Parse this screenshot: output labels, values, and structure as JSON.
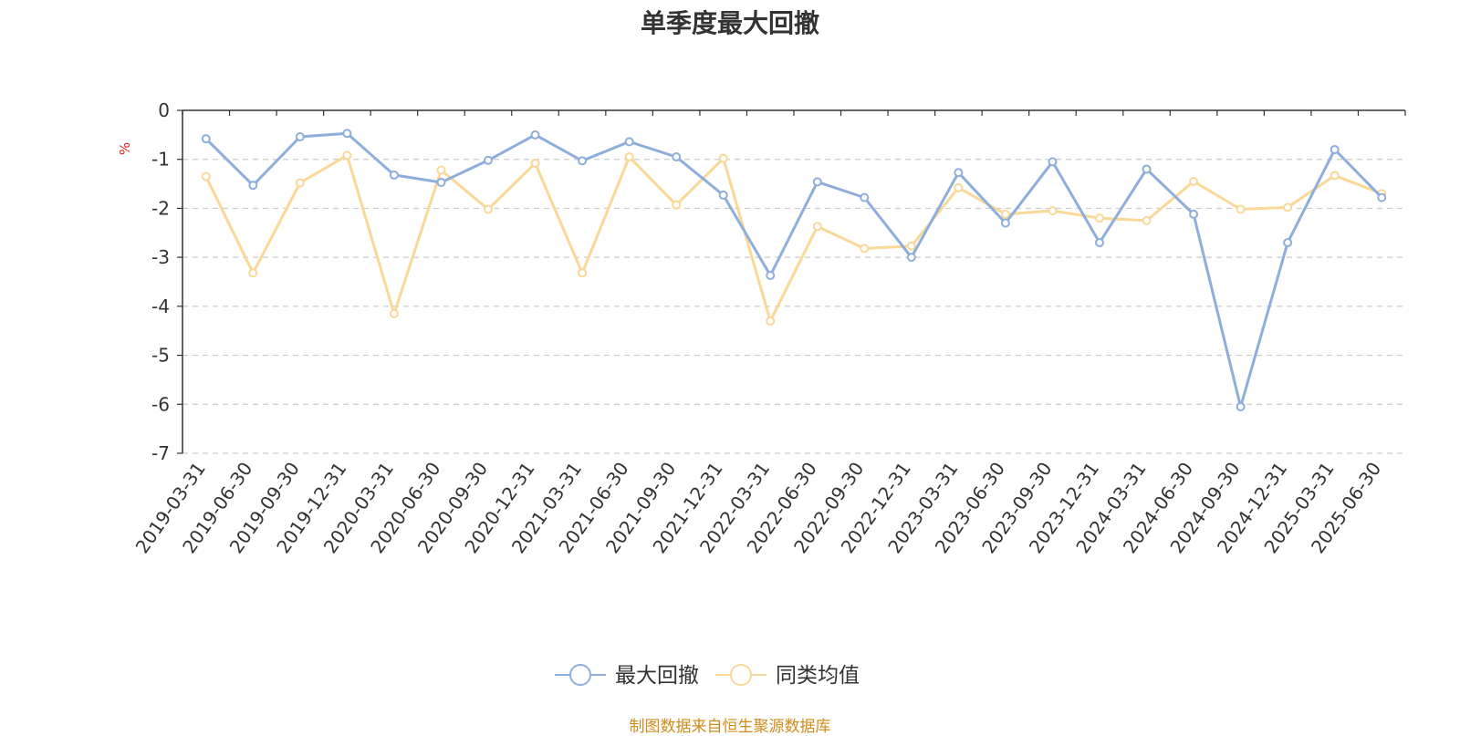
{
  "title": "单季度最大回撤",
  "source_note": "制图数据来自恒生聚源数据库",
  "chart_data": {
    "type": "line",
    "title": "单季度最大回撤",
    "ylabel": "%",
    "ylabel_color": "#e02020",
    "ylim": [
      -7,
      0
    ],
    "yticks": [
      0,
      -1,
      -2,
      -3,
      -4,
      -5,
      -6,
      -7
    ],
    "grid": "horizontal dashed",
    "legend_position": "bottom-center",
    "categories": [
      "2019-03-31",
      "2019-06-30",
      "2019-09-30",
      "2019-12-31",
      "2020-03-31",
      "2020-06-30",
      "2020-09-30",
      "2020-12-31",
      "2021-03-31",
      "2021-06-30",
      "2021-09-30",
      "2021-12-31",
      "2022-03-31",
      "2022-06-30",
      "2022-09-30",
      "2022-12-31",
      "2023-03-31",
      "2023-06-30",
      "2023-09-30",
      "2023-12-31",
      "2024-03-31",
      "2024-06-30",
      "2024-09-30",
      "2024-12-31",
      "2025-03-31",
      "2025-06-30"
    ],
    "series": [
      {
        "name": "最大回撤",
        "color": "#8eaedb",
        "values": [
          -0.58,
          -1.53,
          -0.54,
          -0.47,
          -1.32,
          -1.47,
          -1.02,
          -0.5,
          -1.03,
          -0.64,
          -0.95,
          -1.73,
          -3.37,
          -1.46,
          -1.78,
          -3.0,
          -1.27,
          -2.3,
          -1.05,
          -2.7,
          -1.2,
          -2.12,
          -6.05,
          -2.7,
          -0.8,
          -1.78
        ]
      },
      {
        "name": "同类均值",
        "color": "#f9d898",
        "values": [
          -1.35,
          -3.32,
          -1.48,
          -0.92,
          -4.15,
          -1.22,
          -2.02,
          -1.08,
          -3.32,
          -0.95,
          -1.93,
          -0.98,
          -4.3,
          -2.37,
          -2.82,
          -2.77,
          -1.58,
          -2.12,
          -2.05,
          -2.2,
          -2.25,
          -1.45,
          -2.02,
          -1.98,
          -1.33,
          -1.7
        ]
      }
    ]
  }
}
